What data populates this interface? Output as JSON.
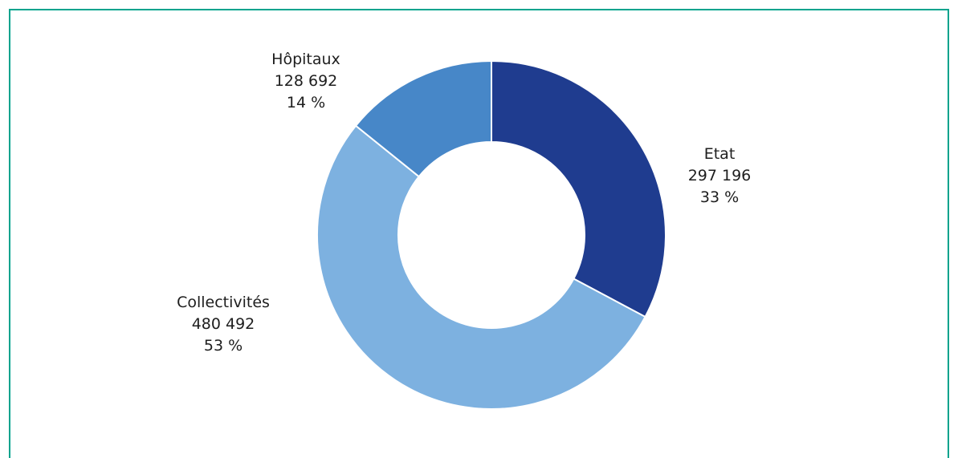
{
  "chart_data": {
    "type": "pie",
    "variant": "donut",
    "legend": "none",
    "slices": [
      {
        "name": "Etat",
        "value_label": "297 196",
        "value": 297196,
        "percent_label": "33 %",
        "percent": 33,
        "color": "#1f3c8f"
      },
      {
        "name": "Collectivités",
        "value_label": "480 492",
        "value": 480492,
        "percent_label": "53 %",
        "percent": 53,
        "color": "#7db1e0"
      },
      {
        "name": "Hôpitaux",
        "value_label": "128 692",
        "value": 128692,
        "percent_label": "14 %",
        "percent": 14,
        "color": "#4787c8"
      }
    ]
  },
  "colors": {
    "frame_border": "#00a38d",
    "slice_separator": "#ffffff",
    "label_text": "#1e1e1e"
  }
}
